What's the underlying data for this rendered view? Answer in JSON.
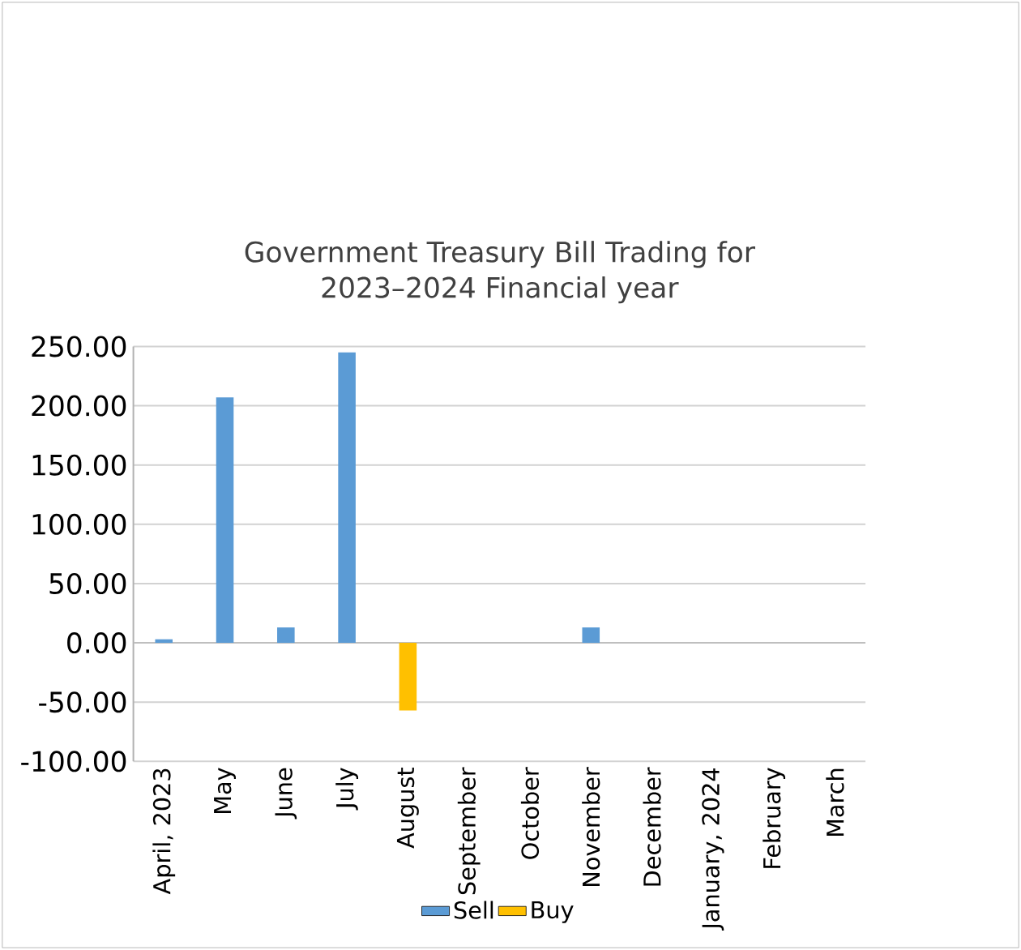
{
  "chart_data": {
    "type": "bar",
    "stacked": true,
    "title": "Government Treasury Bill Trading for 2023–2024 Financial year",
    "categories": [
      "April, 2023",
      "May",
      "June",
      "July",
      "August",
      "September",
      "October",
      "November",
      "December",
      "January, 2024",
      "February",
      "March"
    ],
    "series": [
      {
        "name": "Sell",
        "color": "#5b9bd5",
        "values": [
          3,
          207,
          13,
          245,
          0,
          0,
          0,
          13,
          0,
          0,
          0,
          0
        ]
      },
      {
        "name": "Buy",
        "color": "#ffc000",
        "values": [
          0,
          0,
          0,
          0,
          -57,
          0,
          0,
          0,
          0,
          0,
          0,
          0
        ]
      }
    ],
    "ylim": [
      -100,
      250
    ],
    "yticks": [
      {
        "value": -100,
        "label": "-100.00"
      },
      {
        "value": -50,
        "label": "-50.00"
      },
      {
        "value": 0,
        "label": "0.00"
      },
      {
        "value": 50,
        "label": "50.00"
      },
      {
        "value": 100,
        "label": "100.00"
      },
      {
        "value": 150,
        "label": "150.00"
      },
      {
        "value": 200,
        "label": "200.00"
      },
      {
        "value": 250,
        "label": "250.00"
      }
    ],
    "grid": "y",
    "legend": "bottom"
  }
}
